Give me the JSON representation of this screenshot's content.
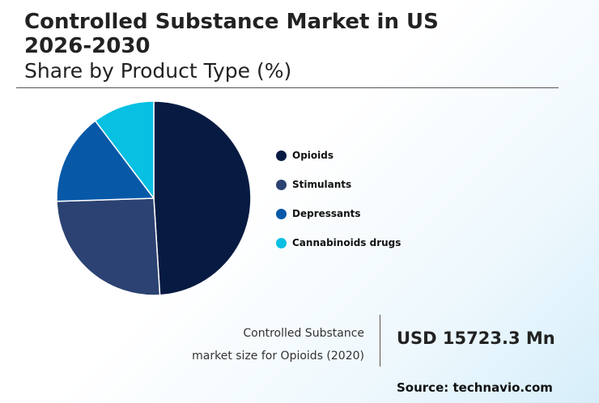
{
  "header": {
    "title": "Controlled Substance Market in US 2026-2030",
    "subtitle": "Share by Product Type (%)"
  },
  "chart_data": {
    "type": "pie",
    "categories": [
      "Opioids",
      "Stimulants",
      "Depressants",
      "Cannabinoids drugs"
    ],
    "values": [
      49,
      25.5,
      15.2,
      10.3
    ],
    "colors": [
      "#071b42",
      "#2c4272",
      "#0759a8",
      "#07c0e2"
    ],
    "legend_position": "right"
  },
  "callout": {
    "label_line1": "Controlled Substance",
    "label_line2": "market size for Opioids (2020)",
    "value": "USD 15723.3 Mn"
  },
  "footer": {
    "source": "Source: technavio.com"
  }
}
